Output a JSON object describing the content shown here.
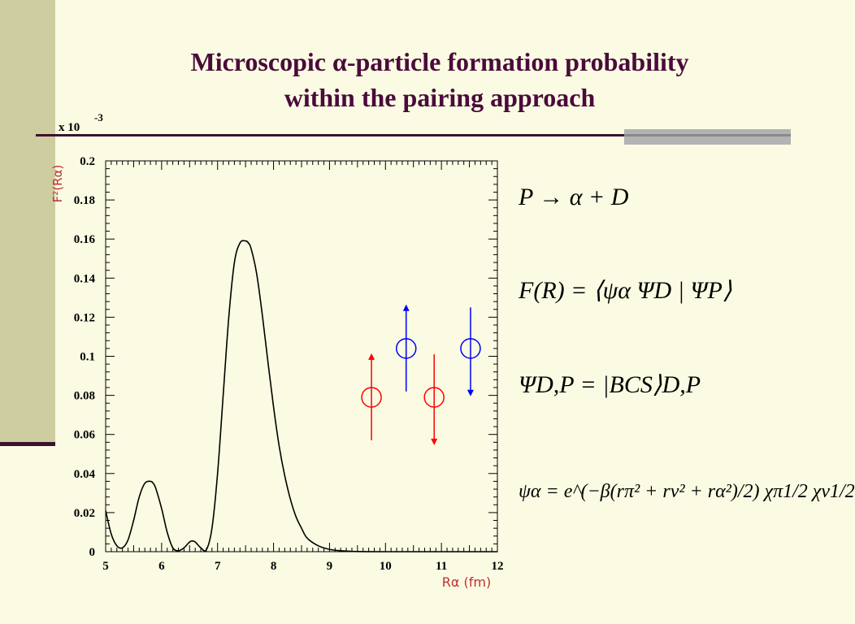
{
  "slide": {
    "title_lines": [
      "Microscopic α-particle formation probability",
      "within the pairing approach"
    ]
  },
  "equations": {
    "eq1": "P → α + D",
    "eq2": "F(R) = ⟨ψα ΨD | ΨP⟩",
    "eq3": "ΨD,P = |BCS⟩D,P",
    "eq4": "ψα = e^(−β(rπ² + rν² + rα²)/2) χπ1/2 χν1/2"
  },
  "chart_data": {
    "type": "line",
    "ylabel": "F²(Rα)",
    "xlabel": "Rα (fm)",
    "y_multiplier": "x 10",
    "y_multiplier_exp": "-3",
    "xlim": [
      5,
      12
    ],
    "ylim": [
      0,
      0.2
    ],
    "x_ticks": [
      "5",
      "6",
      "7",
      "8",
      "9",
      "10",
      "11",
      "12"
    ],
    "y_ticks": [
      "0",
      "0.02",
      "0.04",
      "0.06",
      "0.08",
      "0.1",
      "0.12",
      "0.14",
      "0.16",
      "0.18",
      "0.2"
    ],
    "series": [
      {
        "color": "#000000",
        "x": [
          5.0,
          5.1,
          5.2,
          5.3,
          5.4,
          5.5,
          5.6,
          5.7,
          5.8,
          5.85,
          5.9,
          6.0,
          6.1,
          6.2,
          6.3,
          6.4,
          6.5,
          6.55,
          6.6,
          6.7,
          6.8,
          6.9,
          7.0,
          7.1,
          7.2,
          7.3,
          7.4,
          7.5,
          7.55,
          7.6,
          7.7,
          7.8,
          7.9,
          8.0,
          8.1,
          8.2,
          8.3,
          8.4,
          8.5,
          8.6,
          8.8,
          9.0,
          9.2,
          9.5,
          10.0,
          12.0
        ],
        "y": [
          0.021,
          0.009,
          0.003,
          0.002,
          0.006,
          0.016,
          0.028,
          0.035,
          0.036,
          0.035,
          0.032,
          0.022,
          0.01,
          0.002,
          0.0005,
          0.002,
          0.005,
          0.0055,
          0.005,
          0.002,
          0.001,
          0.012,
          0.04,
          0.08,
          0.12,
          0.148,
          0.158,
          0.159,
          0.158,
          0.155,
          0.142,
          0.121,
          0.097,
          0.074,
          0.054,
          0.039,
          0.027,
          0.018,
          0.012,
          0.007,
          0.003,
          0.0012,
          0.0005,
          0.0001,
          0.0,
          0.0
        ]
      }
    ],
    "markers": [
      {
        "x": 9.75,
        "y": 0.079,
        "color": "#ff0000",
        "direction": "up",
        "arrow_to": 0.099,
        "tail_to": 0.057
      },
      {
        "x": 10.37,
        "y": 0.104,
        "color": "#0000ff",
        "direction": "up",
        "arrow_to": 0.124,
        "tail_to": 0.082
      },
      {
        "x": 10.87,
        "y": 0.079,
        "color": "#ff0000",
        "direction": "down",
        "arrow_to": 0.057,
        "tail_to": 0.101
      },
      {
        "x": 11.52,
        "y": 0.104,
        "color": "#0000ff",
        "direction": "down",
        "arrow_to": 0.082,
        "tail_to": 0.125
      }
    ]
  }
}
